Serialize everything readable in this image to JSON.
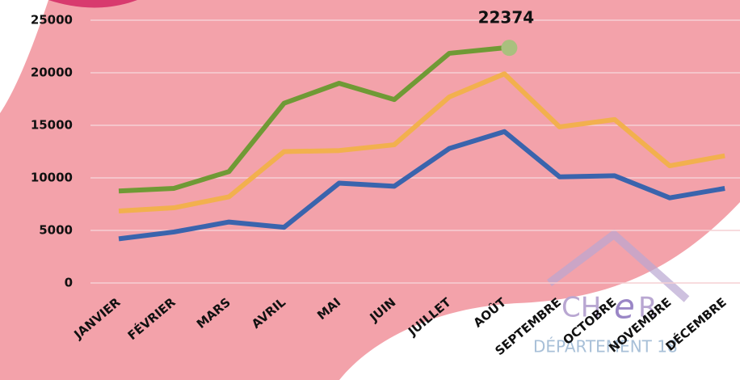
{
  "chart_data": {
    "type": "line",
    "categories": [
      "JANVIER",
      "FÉVRIER",
      "MARS",
      "AVRIL",
      "MAI",
      "JUIN",
      "JUILLET",
      "AOÛT",
      "SEPTEMBRE",
      "OCTOBRE",
      "NOVEMBRE",
      "DÉCEMBRE"
    ],
    "series": [
      {
        "color": "#3a64ad",
        "values": [
          4200,
          4850,
          5800,
          5300,
          9500,
          9200,
          12800,
          14400,
          10100,
          10200,
          8100,
          9000
        ]
      },
      {
        "color": "#f2b04e",
        "values": [
          6850,
          7150,
          8200,
          12500,
          12600,
          13150,
          17700,
          19900,
          14850,
          15550,
          11150,
          12100
        ]
      },
      {
        "color": "#6f9a35",
        "values": [
          8750,
          9000,
          10600,
          17100,
          19000,
          17450,
          21850,
          22374,
          null,
          null,
          null,
          null
        ]
      }
    ],
    "ylim": [
      0,
      25000
    ],
    "yticks": [
      0,
      5000,
      10000,
      15000,
      20000,
      25000
    ],
    "grid": true,
    "annotations": [
      "CH",
      "e",
      "R",
      "DÉPARTEMENT 18"
    ]
  }
}
